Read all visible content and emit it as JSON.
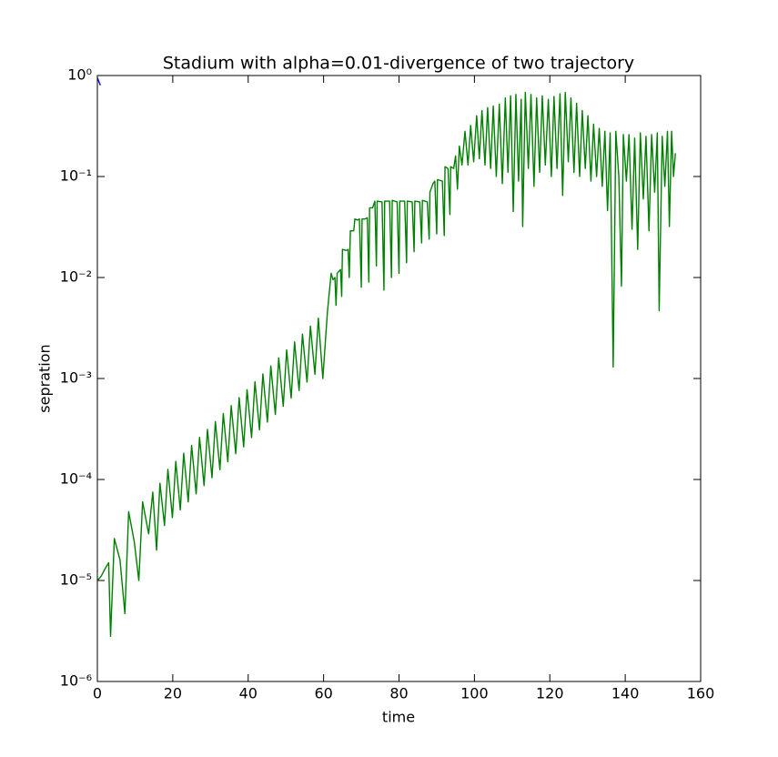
{
  "chart_data": {
    "type": "line",
    "title": "Stadium with alpha=0.01-divergence of two trajectory",
    "xlabel": "time",
    "ylabel": "sepration",
    "xlim": [
      0,
      160
    ],
    "xticks": [
      0,
      20,
      40,
      60,
      80,
      100,
      120,
      140,
      160
    ],
    "ylim": [
      1e-06,
      1
    ],
    "log_y": true,
    "yticks": [
      {
        "value": 1e-06,
        "label": "10⁻⁶"
      },
      {
        "value": 1e-05,
        "label": "10⁻⁵"
      },
      {
        "value": 0.0001,
        "label": "10⁻⁴"
      },
      {
        "value": 0.001,
        "label": "10⁻³"
      },
      {
        "value": 0.01,
        "label": "10⁻²"
      },
      {
        "value": 0.1,
        "label": "10⁻¹"
      },
      {
        "value": 1,
        "label": "10⁰"
      }
    ],
    "series": [
      {
        "color": "#0000ff",
        "x": [
          0,
          0.8
        ],
        "values": [
          0.95,
          0.8
        ]
      },
      {
        "color": "#008000",
        "x": [
          0,
          1,
          2,
          3,
          3.5,
          4.5,
          6,
          7.3,
          8.3,
          9.8,
          11,
          12,
          13.6,
          14.7,
          15.7,
          16.6,
          17.8,
          18.7,
          19.9,
          20.8,
          22,
          22.9,
          24.1,
          25,
          26.2,
          27.1,
          28.3,
          29.2,
          30.4,
          31.3,
          32.5,
          33.4,
          34.6,
          35.5,
          36.7,
          37.6,
          38.8,
          39.7,
          40.9,
          41.8,
          43,
          43.9,
          45.1,
          46,
          47.2,
          48.1,
          49.3,
          50.2,
          51.4,
          52.3,
          53.5,
          54.4,
          55.6,
          56.5,
          57.7,
          58.6,
          59.8,
          61,
          62,
          62.5,
          63,
          63.3,
          63.6,
          64.5,
          64.8,
          65,
          66,
          66.5,
          66.8,
          67.1,
          67.5,
          68,
          68.3,
          69,
          69.5,
          70,
          70.2,
          71,
          71.6,
          72,
          72.2,
          73,
          73.6,
          74,
          74.2,
          75.5,
          76,
          76.2,
          77.5,
          78,
          78.2,
          79.5,
          80,
          80.2,
          81.5,
          82,
          82.2,
          83.5,
          84,
          84.2,
          85.5,
          86,
          86.2,
          87.5,
          88,
          88.2,
          89,
          89.5,
          90,
          90.2,
          91.5,
          92,
          92.2,
          93,
          93.5,
          93.7,
          94.5,
          95,
          95.5,
          96,
          96.7,
          97.5,
          98.3,
          99,
          99.8,
          100.6,
          101.3,
          102,
          102.8,
          103.5,
          104.3,
          105,
          105.8,
          106.6,
          107.4,
          108.2,
          108.9,
          109.6,
          110.3,
          111,
          111.7,
          112.4,
          112.8,
          113.5,
          114.3,
          115,
          115.8,
          116.5,
          117.3,
          118,
          118.8,
          119.6,
          120.4,
          121.1,
          121.9,
          122.7,
          123.4,
          124.1,
          124.9,
          125.6,
          126.4,
          127.1,
          127.9,
          128.6,
          129.4,
          130.1,
          130.9,
          131.6,
          132.4,
          133.1,
          133.9,
          134.6,
          135.3,
          136,
          136.8,
          137.5,
          138.3,
          139,
          139.5,
          140.3,
          141,
          141.8,
          142.5,
          143.3,
          144,
          144.8,
          145.5,
          146.3,
          147,
          147.8,
          148.5,
          149,
          149.8,
          150.5,
          151.2,
          151.7,
          152.3,
          152.8,
          153.3
        ],
        "values": [
          1e-05,
          1.1e-05,
          1.3e-05,
          1.5e-05,
          2.8e-06,
          2.6e-05,
          1.6e-05,
          4.7e-06,
          4.8e-05,
          2.4e-05,
          1e-05,
          6e-05,
          2.9e-05,
          7.5e-05,
          2e-05,
          9.2e-05,
          3.5e-05,
          0.000126,
          4.2e-05,
          0.000151,
          5e-05,
          0.000182,
          6e-05,
          0.000218,
          7.2e-05,
          0.000261,
          8.7e-05,
          0.000313,
          0.000104,
          0.000375,
          0.000125,
          0.000449,
          0.00015,
          0.000538,
          0.00018,
          0.000646,
          0.00021,
          0.000774,
          0.00026,
          0.000928,
          0.00031,
          0.00111,
          0.00037,
          0.00133,
          0.00044,
          0.0016,
          0.00053,
          0.00192,
          0.00064,
          0.0023,
          0.00076,
          0.00275,
          0.00092,
          0.0033,
          0.0011,
          0.00396,
          0.001,
          0.0045,
          0.011,
          0.0095,
          0.01,
          0.0053,
          0.011,
          0.012,
          0.0065,
          0.019,
          0.0185,
          0.019,
          0.01,
          0.029,
          0.029,
          0.029,
          0.038,
          0.037,
          0.038,
          0.008,
          0.038,
          0.038,
          0.039,
          0.009,
          0.049,
          0.049,
          0.057,
          0.013,
          0.057,
          0.056,
          0.0075,
          0.057,
          0.057,
          0.01,
          0.058,
          0.056,
          0.011,
          0.057,
          0.057,
          0.014,
          0.057,
          0.056,
          0.018,
          0.057,
          0.056,
          0.022,
          0.058,
          0.056,
          0.024,
          0.07,
          0.085,
          0.09,
          0.027,
          0.093,
          0.09,
          0.026,
          0.125,
          0.12,
          0.042,
          0.125,
          0.12,
          0.16,
          0.075,
          0.2,
          0.13,
          0.28,
          0.13,
          0.32,
          0.14,
          0.4,
          0.15,
          0.45,
          0.13,
          0.48,
          0.12,
          0.5,
          0.1,
          0.52,
          0.085,
          0.6,
          0.11,
          0.63,
          0.045,
          0.65,
          0.09,
          0.58,
          0.032,
          0.68,
          0.12,
          0.65,
          0.08,
          0.6,
          0.11,
          0.63,
          0.13,
          0.58,
          0.1,
          0.62,
          0.12,
          0.66,
          0.065,
          0.68,
          0.14,
          0.6,
          0.11,
          0.53,
          0.1,
          0.45,
          0.12,
          0.4,
          0.09,
          0.33,
          0.1,
          0.3,
          0.08,
          0.28,
          0.046,
          0.27,
          0.0013,
          0.28,
          0.1,
          0.0082,
          0.26,
          0.09,
          0.26,
          0.03,
          0.24,
          0.019,
          0.27,
          0.06,
          0.25,
          0.029,
          0.26,
          0.07,
          0.27,
          0.0047,
          0.25,
          0.08,
          0.28,
          0.032,
          0.28,
          0.1,
          0.17
        ]
      }
    ]
  }
}
